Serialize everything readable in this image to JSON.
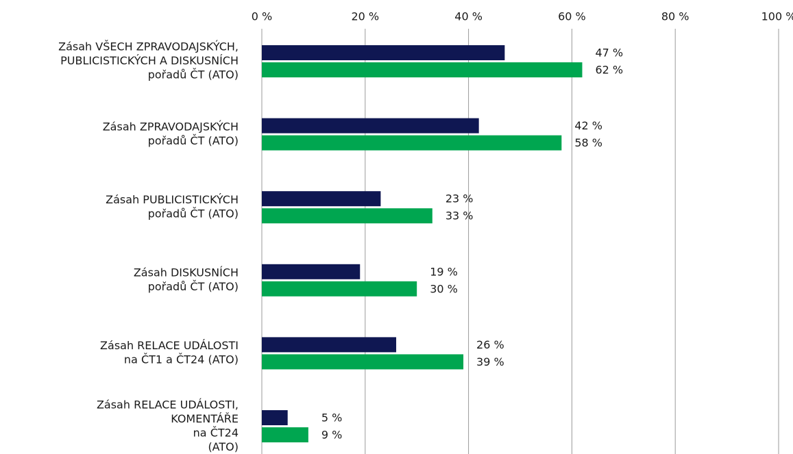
{
  "chart_data": {
    "type": "bar",
    "orientation": "horizontal",
    "categories": [
      [
        "Zásah VŠECH ZPRAVODAJSKÝCH,",
        "PUBLICISTICKÝCH A DISKUSNÍCH",
        "pořadů ČT (ATO)"
      ],
      [
        "Zásah ZPRAVODAJSKÝCH",
        "pořadů ČT (ATO)"
      ],
      [
        "Zásah PUBLICISTICKÝCH",
        "pořadů ČT (ATO)"
      ],
      [
        "Zásah DISKUSNÍCH",
        "pořadů ČT (ATO)"
      ],
      [
        "Zásah RELACE UDÁLOSTI",
        "na ČT1 a ČT24 (ATO)"
      ],
      [
        "Zásah RELACE UDÁLOSTI,",
        "KOMENTÁŘE",
        "na ČT24",
        "(ATO)"
      ]
    ],
    "series": [
      {
        "color": "#0f1752",
        "values": [
          47,
          42,
          23,
          19,
          26,
          5
        ],
        "value_labels": [
          "47 %",
          "42 %",
          "23 %",
          "19 %",
          "26 %",
          "5 %"
        ]
      },
      {
        "color": "#00a650",
        "values": [
          62,
          58,
          33,
          30,
          39,
          9
        ],
        "value_labels": [
          "62 %",
          "58 %",
          "33 %",
          "30 %",
          "39 %",
          "9 %"
        ]
      }
    ],
    "xlim": [
      0,
      100
    ],
    "xticks": [
      {
        "value": 0,
        "label": "0 %"
      },
      {
        "value": 20,
        "label": "20 %"
      },
      {
        "value": 40,
        "label": "40 %"
      },
      {
        "value": 60,
        "label": "60 %"
      },
      {
        "value": 80,
        "label": "80 %"
      },
      {
        "value": 100,
        "label": "100 %"
      }
    ],
    "grid": true
  }
}
